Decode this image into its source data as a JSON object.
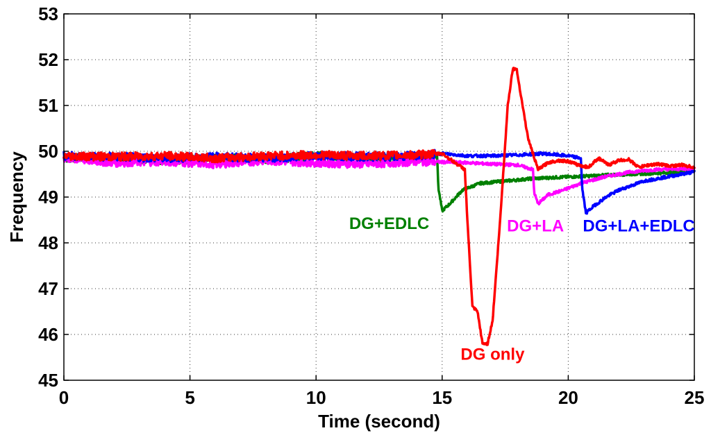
{
  "chart_data": {
    "type": "line",
    "title": "",
    "xlabel": "Time (second)",
    "ylabel": "Frequency",
    "xlim": [
      0,
      25
    ],
    "ylim": [
      45,
      53
    ],
    "xticks": [
      0,
      5,
      10,
      15,
      20,
      25
    ],
    "yticks": [
      45,
      46,
      47,
      48,
      49,
      50,
      51,
      52,
      53
    ],
    "grid": true,
    "series": [
      {
        "name": "DG only",
        "color": "#ff0000",
        "x": [
          0,
          2,
          4,
          6,
          8,
          10,
          12,
          14,
          15,
          15.9,
          16.0,
          16.2,
          16.4,
          16.6,
          16.8,
          17.0,
          17.3,
          17.6,
          17.8,
          17.95,
          18.1,
          18.4,
          18.8,
          19.2,
          19.6,
          20.0,
          20.4,
          20.8,
          21.2,
          21.6,
          22.0,
          22.4,
          22.8,
          23.2,
          23.6,
          24.0,
          24.5,
          25
        ],
        "y": [
          49.9,
          49.88,
          49.9,
          49.85,
          49.9,
          49.92,
          49.9,
          49.92,
          49.95,
          49.6,
          48.5,
          46.6,
          46.5,
          45.8,
          45.8,
          46.3,
          48.5,
          51.0,
          51.8,
          51.8,
          51.3,
          50.3,
          49.6,
          49.75,
          49.8,
          49.78,
          49.7,
          49.65,
          49.85,
          49.7,
          49.8,
          49.82,
          49.65,
          49.7,
          49.72,
          49.68,
          49.7,
          49.65
        ]
      },
      {
        "name": "DG+EDLC",
        "color": "#008000",
        "x": [
          0,
          2,
          4,
          6,
          8,
          10,
          12,
          14,
          14.8,
          14.85,
          15.0,
          15.3,
          15.8,
          16.5,
          17.5,
          18.5,
          19.5,
          20.5,
          21.5,
          22.5,
          23.5,
          24.5,
          25
        ],
        "y": [
          49.85,
          49.85,
          49.8,
          49.85,
          49.82,
          49.9,
          49.85,
          49.85,
          49.9,
          49.2,
          48.7,
          48.85,
          49.15,
          49.3,
          49.35,
          49.4,
          49.43,
          49.45,
          49.48,
          49.5,
          49.52,
          49.55,
          49.58
        ]
      },
      {
        "name": "DG+LA",
        "color": "#ff00ff",
        "x": [
          0,
          2,
          4,
          6,
          8,
          10,
          12,
          14,
          16,
          17,
          18,
          18.6,
          18.65,
          18.8,
          19.2,
          19.8,
          20.5,
          21.5,
          22.5,
          23.5,
          25
        ],
        "y": [
          49.85,
          49.75,
          49.78,
          49.72,
          49.8,
          49.75,
          49.72,
          49.78,
          49.75,
          49.72,
          49.7,
          49.6,
          49.1,
          48.85,
          49.05,
          49.15,
          49.3,
          49.45,
          49.55,
          49.6,
          49.62
        ]
      },
      {
        "name": "DG+LA+EDLC",
        "color": "#0000ff",
        "x": [
          0,
          2,
          4,
          6,
          8,
          10,
          12,
          14,
          15,
          16,
          17,
          18,
          19,
          20,
          20.5,
          20.55,
          20.7,
          21.0,
          21.5,
          22.0,
          22.5,
          23.0,
          23.5,
          24.0,
          25
        ],
        "y": [
          49.9,
          49.88,
          49.85,
          49.88,
          49.85,
          49.9,
          49.88,
          49.9,
          49.95,
          49.9,
          49.9,
          49.92,
          49.95,
          49.9,
          49.85,
          49.2,
          48.65,
          48.8,
          49.0,
          49.15,
          49.25,
          49.35,
          49.4,
          49.45,
          49.55
        ]
      }
    ],
    "annotations": [
      {
        "text": "DG+EDLC",
        "color": "#008000",
        "x": 12.9,
        "y": 48.3
      },
      {
        "text": "DG+LA",
        "color": "#ff00ff",
        "x": 18.7,
        "y": 48.25
      },
      {
        "text": "DG+LA+EDLC",
        "color": "#0000ff",
        "x": 22.8,
        "y": 48.25
      },
      {
        "text": "DG only",
        "color": "#ff0000",
        "x": 17.0,
        "y": 45.45
      }
    ]
  }
}
